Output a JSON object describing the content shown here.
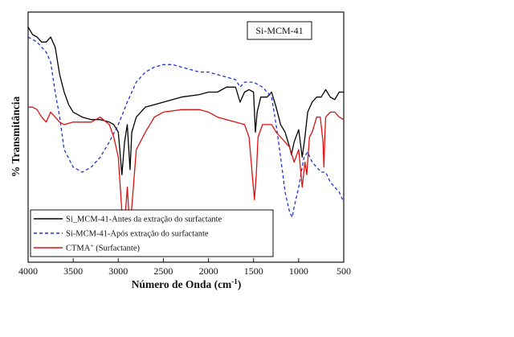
{
  "chart_data": {
    "type": "line",
    "title": "",
    "xlabel": "Número de Onda (cm",
    "xlabel_sup": "-1",
    "xlabel_end": ")",
    "ylabel": "% Transmitância",
    "xlim": [
      4000,
      500
    ],
    "x_reversed": true,
    "x_ticks": [
      4000,
      3500,
      3000,
      2500,
      2000,
      1500,
      1000,
      500
    ],
    "y_ticks_shown": false,
    "inset_label": "Si-MCM-41",
    "legend_position": "bottom-left",
    "series": [
      {
        "name": "Si_MCM-41-Antes da extração do surfactante",
        "color": "#000000",
        "style": "solid",
        "points": [
          [
            4000,
            94
          ],
          [
            3950,
            91
          ],
          [
            3900,
            90
          ],
          [
            3850,
            88
          ],
          [
            3800,
            88
          ],
          [
            3750,
            90
          ],
          [
            3700,
            86
          ],
          [
            3650,
            75
          ],
          [
            3600,
            68
          ],
          [
            3550,
            63
          ],
          [
            3500,
            60
          ],
          [
            3400,
            58
          ],
          [
            3300,
            57
          ],
          [
            3200,
            57
          ],
          [
            3100,
            56
          ],
          [
            3050,
            55
          ],
          [
            3000,
            52
          ],
          [
            2960,
            35
          ],
          [
            2930,
            48
          ],
          [
            2900,
            55
          ],
          [
            2870,
            37
          ],
          [
            2850,
            52
          ],
          [
            2800,
            58
          ],
          [
            2700,
            62
          ],
          [
            2500,
            64
          ],
          [
            2300,
            66
          ],
          [
            2100,
            67
          ],
          [
            2000,
            68
          ],
          [
            1900,
            68
          ],
          [
            1800,
            70
          ],
          [
            1700,
            70
          ],
          [
            1650,
            64
          ],
          [
            1600,
            68
          ],
          [
            1550,
            69
          ],
          [
            1500,
            68
          ],
          [
            1480,
            52
          ],
          [
            1460,
            60
          ],
          [
            1420,
            66
          ],
          [
            1350,
            66
          ],
          [
            1300,
            68
          ],
          [
            1250,
            62
          ],
          [
            1200,
            55
          ],
          [
            1150,
            52
          ],
          [
            1100,
            46
          ],
          [
            1080,
            43
          ],
          [
            1050,
            48
          ],
          [
            1000,
            53
          ],
          [
            960,
            42
          ],
          [
            930,
            50
          ],
          [
            900,
            60
          ],
          [
            850,
            64
          ],
          [
            800,
            66
          ],
          [
            750,
            66
          ],
          [
            700,
            69
          ],
          [
            650,
            66
          ],
          [
            600,
            65
          ],
          [
            550,
            68
          ],
          [
            500,
            68
          ]
        ]
      },
      {
        "name": "Si-MCM-41-Após extração do surfactante",
        "color": "#2233cc",
        "style": "dashed",
        "points": [
          [
            4000,
            90
          ],
          [
            3900,
            88
          ],
          [
            3800,
            84
          ],
          [
            3750,
            80
          ],
          [
            3700,
            68
          ],
          [
            3650,
            58
          ],
          [
            3600,
            45
          ],
          [
            3500,
            38
          ],
          [
            3400,
            36
          ],
          [
            3300,
            38
          ],
          [
            3200,
            42
          ],
          [
            3100,
            48
          ],
          [
            3000,
            55
          ],
          [
            2900,
            64
          ],
          [
            2800,
            72
          ],
          [
            2700,
            76
          ],
          [
            2600,
            78
          ],
          [
            2500,
            79
          ],
          [
            2400,
            79
          ],
          [
            2300,
            78
          ],
          [
            2200,
            77
          ],
          [
            2100,
            76
          ],
          [
            2000,
            76
          ],
          [
            1900,
            75
          ],
          [
            1800,
            74
          ],
          [
            1700,
            73
          ],
          [
            1650,
            70
          ],
          [
            1600,
            72
          ],
          [
            1500,
            72
          ],
          [
            1450,
            71
          ],
          [
            1400,
            70
          ],
          [
            1350,
            68
          ],
          [
            1300,
            66
          ],
          [
            1250,
            55
          ],
          [
            1200,
            42
          ],
          [
            1150,
            28
          ],
          [
            1100,
            20
          ],
          [
            1070,
            18
          ],
          [
            1050,
            22
          ],
          [
            1000,
            30
          ],
          [
            960,
            38
          ],
          [
            940,
            42
          ],
          [
            900,
            44
          ],
          [
            850,
            40
          ],
          [
            800,
            38
          ],
          [
            750,
            36
          ],
          [
            700,
            36
          ],
          [
            650,
            32
          ],
          [
            600,
            30
          ],
          [
            550,
            28
          ],
          [
            500,
            24
          ]
        ]
      },
      {
        "name": "CTMA",
        "name_sup": "+",
        "name_end": " (Surfactante)",
        "color": "#dd1111",
        "style": "solid",
        "points": [
          [
            4000,
            62
          ],
          [
            3950,
            62
          ],
          [
            3900,
            61
          ],
          [
            3850,
            58
          ],
          [
            3800,
            56
          ],
          [
            3750,
            60
          ],
          [
            3700,
            58
          ],
          [
            3650,
            56
          ],
          [
            3600,
            55
          ],
          [
            3500,
            56
          ],
          [
            3400,
            56
          ],
          [
            3300,
            56
          ],
          [
            3200,
            58
          ],
          [
            3100,
            55
          ],
          [
            3050,
            50
          ],
          [
            3000,
            42
          ],
          [
            2960,
            20
          ],
          [
            2930,
            15
          ],
          [
            2900,
            30
          ],
          [
            2870,
            12
          ],
          [
            2850,
            22
          ],
          [
            2800,
            45
          ],
          [
            2700,
            52
          ],
          [
            2600,
            58
          ],
          [
            2500,
            60
          ],
          [
            2300,
            61
          ],
          [
            2100,
            61
          ],
          [
            2000,
            60
          ],
          [
            1900,
            58
          ],
          [
            1800,
            57
          ],
          [
            1700,
            56
          ],
          [
            1600,
            55
          ],
          [
            1550,
            50
          ],
          [
            1490,
            25
          ],
          [
            1470,
            35
          ],
          [
            1450,
            50
          ],
          [
            1400,
            55
          ],
          [
            1300,
            55
          ],
          [
            1250,
            52
          ],
          [
            1200,
            50
          ],
          [
            1150,
            48
          ],
          [
            1100,
            46
          ],
          [
            1050,
            40
          ],
          [
            1000,
            45
          ],
          [
            960,
            30
          ],
          [
            930,
            40
          ],
          [
            910,
            35
          ],
          [
            880,
            50
          ],
          [
            850,
            52
          ],
          [
            800,
            58
          ],
          [
            760,
            58
          ],
          [
            730,
            48
          ],
          [
            720,
            38
          ],
          [
            710,
            50
          ],
          [
            700,
            58
          ],
          [
            650,
            60
          ],
          [
            600,
            60
          ],
          [
            550,
            58
          ],
          [
            500,
            57
          ]
        ]
      }
    ]
  }
}
